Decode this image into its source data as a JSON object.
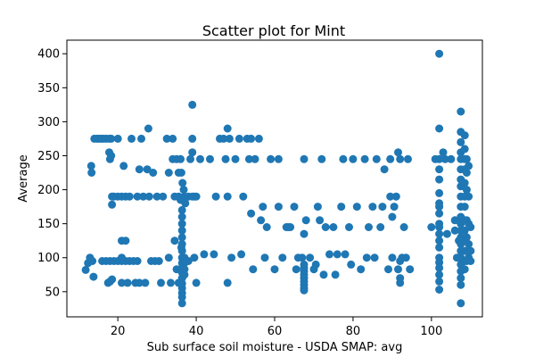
{
  "chart_data": {
    "type": "scatter",
    "title": "Scatter plot for Mint",
    "xlabel": "Sub surface soil moisture - USDA SMAP: avg",
    "ylabel": "Average",
    "xlim": [
      7,
      113
    ],
    "ylim": [
      13,
      420
    ],
    "xticks": [
      20,
      40,
      60,
      80,
      100
    ],
    "yticks": [
      50,
      100,
      150,
      200,
      250,
      300,
      350,
      400
    ],
    "grid": false,
    "marker_color": "#1f77b4",
    "points": [
      [
        11.8,
        82
      ],
      [
        12.4,
        92
      ],
      [
        12.9,
        100
      ],
      [
        13.2,
        235
      ],
      [
        13.3,
        225
      ],
      [
        13.5,
        95
      ],
      [
        13.8,
        72
      ],
      [
        14.0,
        275
      ],
      [
        14.7,
        275
      ],
      [
        15.2,
        275
      ],
      [
        15.8,
        275
      ],
      [
        16.3,
        275
      ],
      [
        17.0,
        275
      ],
      [
        17.8,
        275
      ],
      [
        18.3,
        275
      ],
      [
        16.0,
        95
      ],
      [
        17.0,
        95
      ],
      [
        18.0,
        95
      ],
      [
        19.0,
        95
      ],
      [
        20.0,
        95
      ],
      [
        21.0,
        95
      ],
      [
        22.0,
        95
      ],
      [
        23.0,
        95
      ],
      [
        24.0,
        95
      ],
      [
        25.0,
        95
      ],
      [
        17.5,
        63
      ],
      [
        18.0,
        65
      ],
      [
        18.5,
        68
      ],
      [
        17.8,
        255
      ],
      [
        18.3,
        250
      ],
      [
        18.0,
        245
      ],
      [
        18.5,
        190
      ],
      [
        18.5,
        178
      ],
      [
        19.0,
        190
      ],
      [
        20.0,
        190
      ],
      [
        21.0,
        190
      ],
      [
        22.0,
        190
      ],
      [
        23.0,
        190
      ],
      [
        25.0,
        190
      ],
      [
        26.5,
        190
      ],
      [
        28.0,
        190
      ],
      [
        20.0,
        275
      ],
      [
        21.5,
        235
      ],
      [
        21.0,
        125
      ],
      [
        22.0,
        125
      ],
      [
        21.0,
        100
      ],
      [
        21.0,
        63
      ],
      [
        22.5,
        63
      ],
      [
        23.5,
        275
      ],
      [
        24.5,
        63
      ],
      [
        25.5,
        230
      ],
      [
        25.5,
        63
      ],
      [
        26.0,
        275
      ],
      [
        27.0,
        63
      ],
      [
        27.5,
        230
      ],
      [
        27.8,
        290
      ],
      [
        28.5,
        95
      ],
      [
        29.0,
        225
      ],
      [
        29.5,
        95
      ],
      [
        30.0,
        190
      ],
      [
        30.5,
        95
      ],
      [
        31.0,
        63
      ],
      [
        31.5,
        190
      ],
      [
        32.5,
        275
      ],
      [
        33.0,
        225
      ],
      [
        33.0,
        100
      ],
      [
        33.5,
        63
      ],
      [
        34.0,
        275
      ],
      [
        34.5,
        190
      ],
      [
        34.0,
        245
      ],
      [
        35.0,
        245
      ],
      [
        34.5,
        125
      ],
      [
        35.5,
        190
      ],
      [
        35.5,
        225
      ],
      [
        35.5,
        63
      ],
      [
        36.0,
        185
      ],
      [
        36.2,
        115
      ],
      [
        35.0,
        83
      ],
      [
        36.0,
        245
      ],
      [
        36.2,
        225
      ],
      [
        36.5,
        210
      ],
      [
        36.8,
        200
      ],
      [
        37.0,
        190
      ],
      [
        37.2,
        180
      ],
      [
        36.4,
        170
      ],
      [
        36.4,
        160
      ],
      [
        36.4,
        150
      ],
      [
        36.4,
        140
      ],
      [
        36.4,
        130
      ],
      [
        36.4,
        120
      ],
      [
        36.4,
        110
      ],
      [
        36.4,
        100
      ],
      [
        36.4,
        92
      ],
      [
        36.4,
        85
      ],
      [
        36.4,
        78
      ],
      [
        36.4,
        70
      ],
      [
        36.4,
        62
      ],
      [
        36.4,
        55
      ],
      [
        36.4,
        48
      ],
      [
        36.4,
        42
      ],
      [
        36.4,
        33
      ],
      [
        37.0,
        100
      ],
      [
        37.0,
        92
      ],
      [
        37.0,
        83
      ],
      [
        37.0,
        75
      ],
      [
        38.0,
        190
      ],
      [
        38.0,
        95
      ],
      [
        38.5,
        245
      ],
      [
        39.0,
        275
      ],
      [
        39.0,
        255
      ],
      [
        39.0,
        325
      ],
      [
        39.0,
        190
      ],
      [
        39.5,
        190
      ],
      [
        39.5,
        100
      ],
      [
        40.0,
        190
      ],
      [
        40.0,
        63
      ],
      [
        41.0,
        245
      ],
      [
        42.0,
        105
      ],
      [
        43.5,
        245
      ],
      [
        44.5,
        105
      ],
      [
        45.0,
        190
      ],
      [
        46.0,
        275
      ],
      [
        47.0,
        275
      ],
      [
        47.5,
        245
      ],
      [
        48.0,
        290
      ],
      [
        48.0,
        190
      ],
      [
        48.0,
        63
      ],
      [
        48.5,
        275
      ],
      [
        49.0,
        100
      ],
      [
        50.0,
        245
      ],
      [
        51.0,
        275
      ],
      [
        51.5,
        105
      ],
      [
        52.0,
        190
      ],
      [
        53.0,
        275
      ],
      [
        53.5,
        245
      ],
      [
        54.0,
        275
      ],
      [
        54.0,
        165
      ],
      [
        54.5,
        83
      ],
      [
        55.0,
        245
      ],
      [
        56.0,
        275
      ],
      [
        56.5,
        155
      ],
      [
        57.0,
        175
      ],
      [
        57.5,
        100
      ],
      [
        58.0,
        145
      ],
      [
        59.0,
        245
      ],
      [
        60.0,
        83
      ],
      [
        61.0,
        245
      ],
      [
        61.0,
        175
      ],
      [
        62.0,
        100
      ],
      [
        63.0,
        145
      ],
      [
        63.5,
        145
      ],
      [
        64.0,
        145
      ],
      [
        65.0,
        175
      ],
      [
        65.5,
        83
      ],
      [
        66.0,
        100
      ],
      [
        67.0,
        100
      ],
      [
        67.5,
        245
      ],
      [
        67.5,
        135
      ],
      [
        67.5,
        90
      ],
      [
        67.5,
        85
      ],
      [
        67.5,
        80
      ],
      [
        67.5,
        75
      ],
      [
        67.5,
        70
      ],
      [
        67.5,
        65
      ],
      [
        67.5,
        60
      ],
      [
        67.5,
        55
      ],
      [
        67.5,
        52
      ],
      [
        68.0,
        155
      ],
      [
        69.0,
        100
      ],
      [
        70.0,
        83
      ],
      [
        70.5,
        90
      ],
      [
        71.0,
        175
      ],
      [
        71.5,
        155
      ],
      [
        72.0,
        245
      ],
      [
        72.5,
        75
      ],
      [
        73.0,
        145
      ],
      [
        74.0,
        105
      ],
      [
        75.0,
        145
      ],
      [
        75.5,
        75
      ],
      [
        76.0,
        105
      ],
      [
        77.0,
        175
      ],
      [
        77.5,
        245
      ],
      [
        78.0,
        105
      ],
      [
        79.0,
        145
      ],
      [
        79.5,
        90
      ],
      [
        80.0,
        245
      ],
      [
        81.0,
        175
      ],
      [
        82.0,
        83
      ],
      [
        83.0,
        245
      ],
      [
        83.5,
        100
      ],
      [
        84.0,
        145
      ],
      [
        85.0,
        175
      ],
      [
        85.5,
        100
      ],
      [
        86.0,
        245
      ],
      [
        87.0,
        145
      ],
      [
        87.5,
        175
      ],
      [
        88.0,
        230
      ],
      [
        89.0,
        83
      ],
      [
        89.5,
        245
      ],
      [
        89.5,
        190
      ],
      [
        90.0,
        160
      ],
      [
        90.0,
        100
      ],
      [
        90.5,
        175
      ],
      [
        91.0,
        190
      ],
      [
        91.5,
        255
      ],
      [
        91.5,
        83
      ],
      [
        92.0,
        245
      ],
      [
        92.0,
        70
      ],
      [
        92.0,
        63
      ],
      [
        92.0,
        95
      ],
      [
        92.5,
        100
      ],
      [
        93.0,
        145
      ],
      [
        93.5,
        100
      ],
      [
        94.0,
        245
      ],
      [
        94.5,
        83
      ],
      [
        100.0,
        145
      ],
      [
        101.0,
        245
      ],
      [
        102.0,
        400
      ],
      [
        102.0,
        290
      ],
      [
        102.0,
        245
      ],
      [
        102.0,
        230
      ],
      [
        102.0,
        215
      ],
      [
        102.0,
        195
      ],
      [
        102.0,
        180
      ],
      [
        102.0,
        175
      ],
      [
        102.0,
        165
      ],
      [
        102.0,
        150
      ],
      [
        102.0,
        145
      ],
      [
        102.0,
        135
      ],
      [
        102.0,
        125
      ],
      [
        102.0,
        115
      ],
      [
        102.0,
        100
      ],
      [
        102.0,
        93
      ],
      [
        102.0,
        85
      ],
      [
        102.0,
        75
      ],
      [
        102.0,
        65
      ],
      [
        102.0,
        53
      ],
      [
        103.0,
        255
      ],
      [
        103.5,
        245
      ],
      [
        104.0,
        135
      ],
      [
        105.0,
        245
      ],
      [
        106.0,
        155
      ],
      [
        106.0,
        140
      ],
      [
        106.5,
        100
      ],
      [
        107.0,
        125
      ],
      [
        107.0,
        100
      ],
      [
        107.5,
        315
      ],
      [
        107.5,
        285
      ],
      [
        107.5,
        270
      ],
      [
        107.5,
        255
      ],
      [
        107.5,
        245
      ],
      [
        107.5,
        230
      ],
      [
        107.5,
        215
      ],
      [
        107.5,
        205
      ],
      [
        107.5,
        190
      ],
      [
        107.5,
        175
      ],
      [
        107.5,
        160
      ],
      [
        107.5,
        150
      ],
      [
        107.5,
        140
      ],
      [
        107.5,
        130
      ],
      [
        107.5,
        120
      ],
      [
        107.5,
        110
      ],
      [
        107.5,
        100
      ],
      [
        107.5,
        90
      ],
      [
        107.5,
        80
      ],
      [
        107.5,
        70
      ],
      [
        107.5,
        60
      ],
      [
        107.5,
        33
      ],
      [
        108.5,
        280
      ],
      [
        108.5,
        260
      ],
      [
        108.5,
        245
      ],
      [
        108.5,
        230
      ],
      [
        108.5,
        210
      ],
      [
        108.5,
        190
      ],
      [
        108.5,
        175
      ],
      [
        108.5,
        155
      ],
      [
        108.5,
        140
      ],
      [
        108.5,
        125
      ],
      [
        108.5,
        110
      ],
      [
        108.5,
        95
      ],
      [
        108.5,
        83
      ],
      [
        109.0,
        245
      ],
      [
        109.0,
        225
      ],
      [
        109.0,
        200
      ],
      [
        109.0,
        155
      ],
      [
        109.0,
        130
      ],
      [
        109.0,
        110
      ],
      [
        109.0,
        95
      ],
      [
        109.5,
        235
      ],
      [
        109.5,
        190
      ],
      [
        109.5,
        150
      ],
      [
        109.5,
        120
      ],
      [
        109.5,
        100
      ],
      [
        110.0,
        145
      ],
      [
        110.0,
        110
      ],
      [
        110.0,
        95
      ]
    ]
  }
}
